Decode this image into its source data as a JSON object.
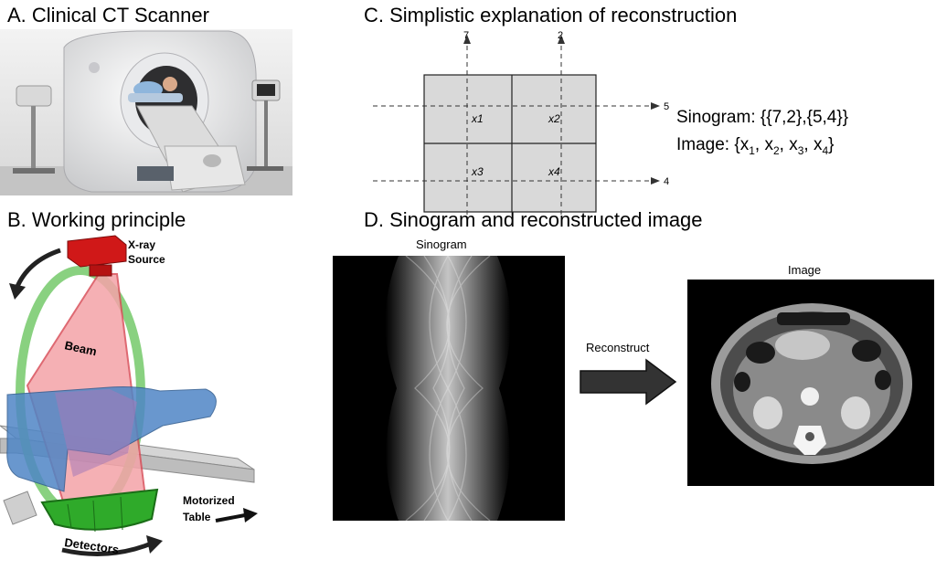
{
  "panels": {
    "a": {
      "title": "A. Clinical CT Scanner"
    },
    "b": {
      "title": "B. Working principle",
      "labels": {
        "xray_line1": "X-ray",
        "xray_line2": "Source",
        "beam": "Beam",
        "motorized_line1": "Motorized",
        "motorized_line2": "Table",
        "detectors": "Detectors"
      }
    },
    "c": {
      "title": "C. Simplistic explanation of reconstruction",
      "grid": {
        "cells": [
          "x1",
          "x2",
          "x3",
          "x4"
        ],
        "column_sums": [
          "7",
          "2"
        ],
        "row_sums": [
          "5",
          "4"
        ]
      },
      "sinogram_label": "Sinogram:",
      "sinogram_value": "{{7,2},{5,4}}",
      "image_label": "Image:",
      "image_open": "{x",
      "image_subs": [
        "1",
        "2",
        "3",
        "4"
      ],
      "image_sep": ", x",
      "image_close": "}"
    },
    "d": {
      "title": "D. Sinogram and reconstructed image",
      "sinogram_caption": "Sinogram",
      "image_caption": "Image",
      "arrow_label": "Reconstruct"
    }
  },
  "colors": {
    "beam": "#f4a3a8",
    "gantry_ring": "#7ccc72",
    "xray_source": "#d01818",
    "detector": "#2faa2a",
    "patient": "#4f86c6",
    "grid_fill": "#d9d9d9",
    "arrow": "#333333"
  }
}
